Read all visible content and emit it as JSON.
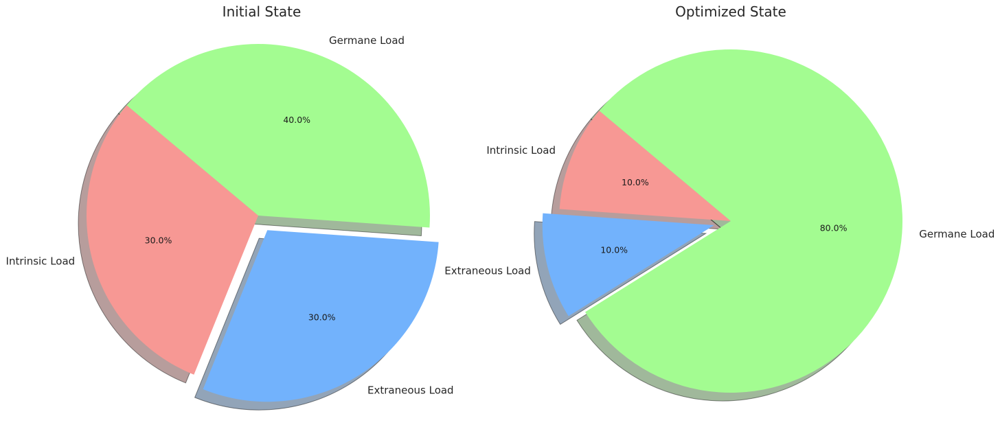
{
  "chart_data": [
    {
      "type": "pie",
      "title": "Initial State",
      "categories": [
        "Intrinsic Load",
        "Extraneous Load",
        "Germane Load"
      ],
      "values": [
        30.0,
        30.0,
        40.0
      ],
      "percent_labels": [
        "30.0%",
        "30.0%",
        "40.0%"
      ],
      "colors": [
        "#f79894",
        "#72b2fc",
        "#a3fc91"
      ],
      "exploded": [
        false,
        true,
        false
      ],
      "shadow": true
    },
    {
      "type": "pie",
      "title": "Optimized State",
      "categories": [
        "Intrinsic Load",
        "Extraneous Load",
        "Germane Load"
      ],
      "values": [
        10.0,
        10.0,
        80.0
      ],
      "percent_labels": [
        "10.0%",
        "10.0%",
        "80.0%"
      ],
      "colors": [
        "#f79894",
        "#72b2fc",
        "#a3fc91"
      ],
      "exploded": [
        false,
        true,
        false
      ],
      "shadow": true
    }
  ]
}
